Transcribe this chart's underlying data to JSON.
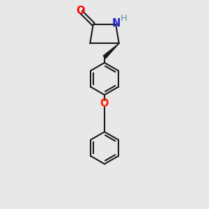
{
  "bg_color": "#e8e8e8",
  "bond_color": "#1a1a1a",
  "O_color": "#ff0000",
  "N_color": "#2222cc",
  "NH_color": "#559999",
  "O_linker_color": "#ff2200",
  "line_width": 1.5,
  "figsize": [
    3.0,
    3.0
  ],
  "dpi": 100,
  "xlim": [
    0,
    10
  ],
  "ylim": [
    0,
    13
  ]
}
